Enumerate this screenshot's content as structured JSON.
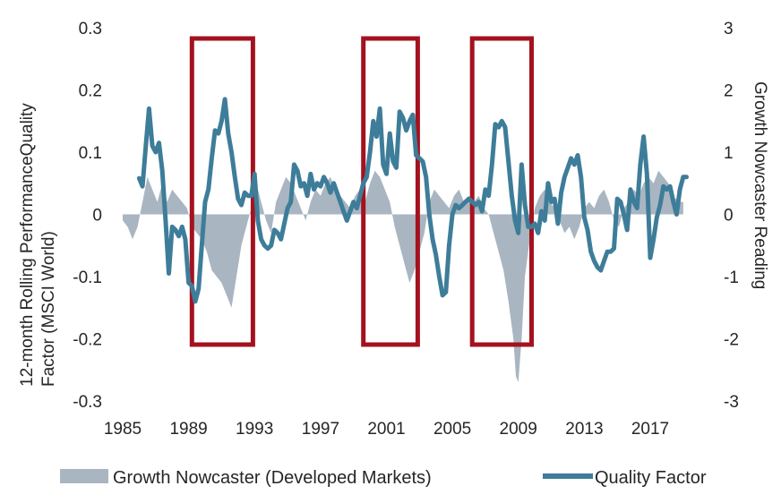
{
  "chart_data": {
    "type": "line",
    "ylabel": "12-month Rolling PerformanceQuality Factor (MSCI World)",
    "y2label": "Growth Nowcaster Reading",
    "ylim": [
      -0.3,
      0.3
    ],
    "y2lim": [
      -3,
      3
    ],
    "xlim": [
      1985,
      2019.5
    ],
    "x_ticks": [
      "1985",
      "1989",
      "1993",
      "1997",
      "2001",
      "2005",
      "2009",
      "2013",
      "2017"
    ],
    "y_ticks": [
      "0.3",
      "0.2",
      "0.1",
      "0",
      "-0.1",
      "-0.2",
      "-0.3"
    ],
    "y2_ticks": [
      "3",
      "2",
      "1",
      "0",
      "-1",
      "-2",
      "-3"
    ],
    "legend_position": "bottom",
    "highlight_periods": [
      [
        1989.2,
        1992.9
      ],
      [
        1999.6,
        2002.9
      ],
      [
        2006.2,
        2009.8
      ]
    ],
    "colors": {
      "area": "#a9b6c1",
      "line": "#3e7d99",
      "highlight": "#a4121f"
    },
    "series": [
      {
        "name": "Growth Nowcaster (Developed Markets)",
        "kind": "area",
        "axis": "right",
        "x": [
          1985,
          1985.3,
          1985.6,
          1985.9,
          1986.2,
          1986.5,
          1986.8,
          1987.1,
          1987.4,
          1987.7,
          1988,
          1988.3,
          1988.6,
          1988.9,
          1989.2,
          1989.5,
          1989.8,
          1990.1,
          1990.4,
          1990.7,
          1991,
          1991.3,
          1991.6,
          1991.9,
          1992.2,
          1992.5,
          1992.8,
          1993.1,
          1993.4,
          1993.7,
          1994,
          1994.3,
          1994.6,
          1994.9,
          1995.2,
          1995.5,
          1995.8,
          1996.1,
          1996.4,
          1996.7,
          1997,
          1997.3,
          1997.6,
          1997.9,
          1998.2,
          1998.5,
          1998.8,
          1999.1,
          1999.4,
          1999.7,
          2000,
          2000.3,
          2000.6,
          2000.9,
          2001.2,
          2001.5,
          2001.8,
          2002.1,
          2002.4,
          2002.7,
          2003,
          2003.3,
          2003.6,
          2003.9,
          2004.2,
          2004.5,
          2004.8,
          2005.1,
          2005.4,
          2005.7,
          2006,
          2006.3,
          2006.6,
          2006.9,
          2007.2,
          2007.5,
          2007.8,
          2008.1,
          2008.4,
          2008.7,
          2008.85,
          2009,
          2009.2,
          2009.4,
          2009.7,
          2010,
          2010.3,
          2010.6,
          2010.9,
          2011.2,
          2011.5,
          2011.8,
          2012.1,
          2012.4,
          2012.7,
          2013,
          2013.3,
          2013.6,
          2013.9,
          2014.2,
          2014.5,
          2014.8,
          2015.1,
          2015.4,
          2015.7,
          2016,
          2016.3,
          2016.6,
          2016.9,
          2017.2,
          2017.5,
          2017.8,
          2018.1,
          2018.4,
          2018.7,
          2019
        ],
        "values": [
          -0.1,
          -0.2,
          -0.4,
          -0.2,
          0.2,
          0.6,
          0.4,
          0.2,
          0.5,
          0.2,
          0.4,
          0.3,
          0.2,
          0.1,
          -0.2,
          -0.3,
          -0.4,
          -0.6,
          -0.9,
          -1.0,
          -1.1,
          -1.3,
          -1.5,
          -1.0,
          -0.5,
          -0.2,
          0.1,
          0.5,
          0.2,
          -0.1,
          -0.3,
          0.2,
          0.4,
          0.6,
          0.5,
          0.3,
          0.1,
          -0.1,
          0.2,
          0.4,
          0.3,
          0.5,
          0.6,
          0.4,
          0.3,
          0.2,
          0.1,
          0.3,
          0.4,
          0.2,
          0.5,
          0.7,
          0.6,
          0.4,
          0.2,
          -0.2,
          -0.5,
          -0.8,
          -1.1,
          -0.9,
          -0.6,
          -0.3,
          0.2,
          0.4,
          0.3,
          0.2,
          0.1,
          0.3,
          0.4,
          0.2,
          0.3,
          0.2,
          0.3,
          0.1,
          0.0,
          -0.3,
          -0.6,
          -0.9,
          -1.4,
          -2.0,
          -2.6,
          -2.7,
          -2.0,
          -1.0,
          -0.4,
          0.1,
          0.3,
          0.4,
          0.2,
          0.1,
          -0.1,
          -0.3,
          -0.2,
          -0.4,
          -0.2,
          0.1,
          0.2,
          0.1,
          0.3,
          0.4,
          0.2,
          -0.1,
          -0.2,
          0.1,
          0.2,
          0.4,
          0.3,
          0.5,
          0.6,
          0.5,
          0.7,
          0.6,
          0.5,
          0.3,
          0.2,
          0.2
        ]
      },
      {
        "name": "Quality Factor",
        "kind": "line",
        "axis": "left",
        "x": [
          1986.0,
          1986.2,
          1986.4,
          1986.6,
          1986.8,
          1987.0,
          1987.2,
          1987.4,
          1987.6,
          1987.8,
          1988.0,
          1988.2,
          1988.4,
          1988.6,
          1988.8,
          1989.0,
          1989.2,
          1989.4,
          1989.6,
          1989.8,
          1990.0,
          1990.2,
          1990.4,
          1990.6,
          1990.8,
          1991.0,
          1991.2,
          1991.4,
          1991.6,
          1991.8,
          1992.0,
          1992.2,
          1992.4,
          1992.6,
          1992.8,
          1993.0,
          1993.2,
          1993.4,
          1993.6,
          1993.8,
          1994.0,
          1994.2,
          1994.4,
          1994.6,
          1994.8,
          1995.0,
          1995.2,
          1995.4,
          1995.6,
          1995.8,
          1996.0,
          1996.2,
          1996.4,
          1996.6,
          1996.8,
          1997.0,
          1997.2,
          1997.4,
          1997.6,
          1997.8,
          1998.0,
          1998.2,
          1998.4,
          1998.6,
          1998.8,
          1999.0,
          1999.2,
          1999.4,
          1999.6,
          1999.8,
          2000.0,
          2000.2,
          2000.4,
          2000.6,
          2000.8,
          2001.0,
          2001.2,
          2001.4,
          2001.6,
          2001.8,
          2002.0,
          2002.2,
          2002.4,
          2002.6,
          2002.8,
          2003.0,
          2003.2,
          2003.4,
          2003.6,
          2003.8,
          2004.0,
          2004.2,
          2004.4,
          2004.6,
          2004.8,
          2005.0,
          2005.2,
          2005.4,
          2005.6,
          2005.8,
          2006.0,
          2006.2,
          2006.4,
          2006.6,
          2006.8,
          2007.0,
          2007.2,
          2007.4,
          2007.6,
          2007.8,
          2008.0,
          2008.2,
          2008.4,
          2008.6,
          2008.8,
          2009.0,
          2009.2,
          2009.4,
          2009.6,
          2009.8,
          2010.0,
          2010.2,
          2010.4,
          2010.6,
          2010.8,
          2011.0,
          2011.2,
          2011.4,
          2011.6,
          2011.8,
          2012.0,
          2012.2,
          2012.4,
          2012.6,
          2012.8,
          2013.0,
          2013.2,
          2013.4,
          2013.6,
          2013.8,
          2014.0,
          2014.2,
          2014.4,
          2014.6,
          2014.8,
          2015.0,
          2015.2,
          2015.4,
          2015.6,
          2015.8,
          2016.0,
          2016.2,
          2016.4,
          2016.6,
          2016.8,
          2017.0,
          2017.2,
          2017.4,
          2017.6,
          2017.8,
          2018.0,
          2018.2,
          2018.4,
          2018.6,
          2018.8,
          2019.0,
          2019.2
        ],
        "values": [
          0.058,
          0.045,
          0.11,
          0.17,
          0.11,
          0.1,
          0.115,
          0.07,
          -0.01,
          -0.095,
          -0.02,
          -0.025,
          -0.035,
          -0.02,
          -0.04,
          -0.11,
          -0.115,
          -0.14,
          -0.12,
          -0.05,
          0.02,
          0.04,
          0.09,
          0.135,
          0.13,
          0.15,
          0.185,
          0.13,
          0.1,
          0.06,
          0.025,
          0.015,
          0.035,
          0.03,
          0.03,
          0.065,
          -0.01,
          -0.04,
          -0.05,
          -0.055,
          -0.05,
          -0.025,
          -0.03,
          -0.04,
          -0.015,
          0.01,
          0.02,
          0.08,
          0.07,
          0.045,
          0.05,
          0.03,
          0.065,
          0.04,
          0.05,
          0.045,
          0.06,
          0.05,
          0.035,
          0.05,
          0.035,
          0.02,
          0.005,
          -0.01,
          0.005,
          0.02,
          0.01,
          0.03,
          0.05,
          0.06,
          0.1,
          0.15,
          0.125,
          0.17,
          0.08,
          0.065,
          0.13,
          0.085,
          0.075,
          0.165,
          0.155,
          0.135,
          0.15,
          0.16,
          0.095,
          0.09,
          0.085,
          0.06,
          0.0,
          -0.04,
          -0.065,
          -0.1,
          -0.13,
          -0.125,
          -0.05,
          0.0,
          0.015,
          0.01,
          0.015,
          0.02,
          0.025,
          0.02,
          0.015,
          0.02,
          0.005,
          0.04,
          0.03,
          0.08,
          0.145,
          0.14,
          0.15,
          0.14,
          0.085,
          0.03,
          -0.01,
          -0.03,
          0.08,
          0.015,
          -0.02,
          -0.02,
          -0.015,
          -0.03,
          0.005,
          -0.01,
          0.05,
          0.02,
          0.025,
          -0.015,
          0.035,
          0.06,
          0.075,
          0.09,
          0.08,
          0.095,
          0.06,
          -0.005,
          -0.025,
          -0.06,
          -0.075,
          -0.085,
          -0.09,
          -0.075,
          -0.06,
          -0.06,
          -0.055,
          0.025,
          0.02,
          0.0,
          -0.025,
          0.04,
          0.02,
          0.01,
          0.08,
          0.125,
          0.065,
          -0.07,
          -0.04,
          -0.005,
          0.015,
          0.045,
          0.04,
          0.045,
          0.02,
          0.0,
          0.04,
          0.06,
          0.06
        ]
      }
    ]
  }
}
